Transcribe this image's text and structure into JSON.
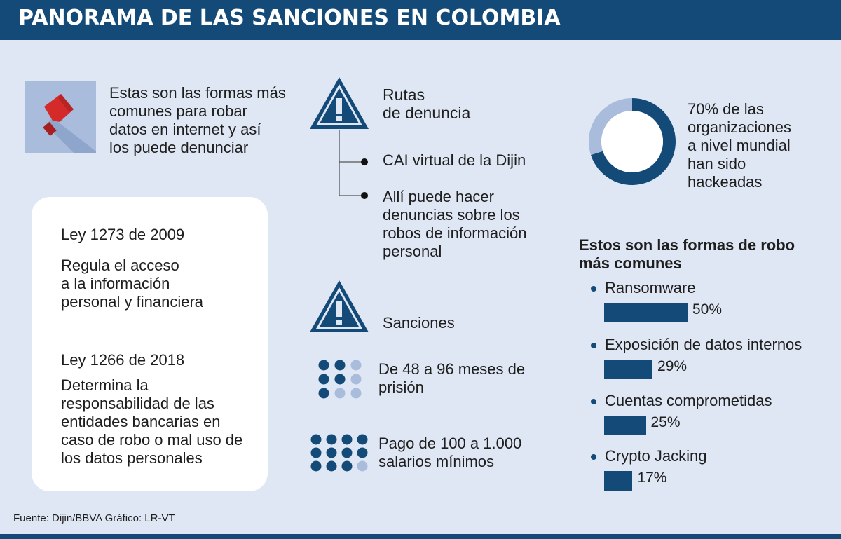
{
  "header": {
    "title": "PANORAMA DE LAS SANCIONES EN COLOMBIA"
  },
  "intro": {
    "text": "Estas son las formas más\ncomunes para robar\ndatos en internet y así\nlos puede denunciar"
  },
  "laws": [
    {
      "title": "Ley 1273 de 2009",
      "description": "Regula el acceso\na la información\npersonal y financiera"
    },
    {
      "title": "Ley 1266 de 2018",
      "description": "Determina la\nresponsabilidad de las\nentidades bancarias en\ncaso de robo o mal uso de\nlos datos personales"
    }
  ],
  "routes": {
    "title": "Rutas\nde denuncia",
    "items": [
      "CAI virtual de la Dijin",
      "Allí puede hacer\ndenuncias sobre los\nrobos de información\npersonal"
    ]
  },
  "sanctions": {
    "title": "Sanciones",
    "items": [
      "De 48 a 96 meses de\nprisión",
      "Pago de 100 a 1.000\nsalarios mínimos"
    ]
  },
  "donut_stat": {
    "text": "70% de las\norganizaciones\na nivel mundial\nhan sido\nhackeadas"
  },
  "colors": {
    "header": "#144a78",
    "accent": "#144a78",
    "light": "#a9bcdc",
    "background": "#dfe7f4",
    "icon_red": "#d42a2a"
  },
  "icons": [
    "hacker-hand-icon",
    "warning-icon",
    "dot-matrix-icon"
  ],
  "chart_data": [
    {
      "type": "pie",
      "categories": [
        "hackeadas",
        ""
      ],
      "values": [
        70,
        30
      ]
    },
    {
      "type": "bar",
      "title": "Estos son las formas de robo\nmás comunes",
      "categories": [
        "Ransomware",
        "Exposición de datos internos",
        "Cuentas comprometidas",
        "Crypto Jacking"
      ],
      "values": [
        50,
        29,
        25,
        17
      ],
      "value_labels": [
        "50%",
        "29%",
        "25%",
        "17%"
      ]
    }
  ],
  "footer": {
    "source": "Fuente: Dijin/BBVA    Gráfico: LR-VT"
  }
}
